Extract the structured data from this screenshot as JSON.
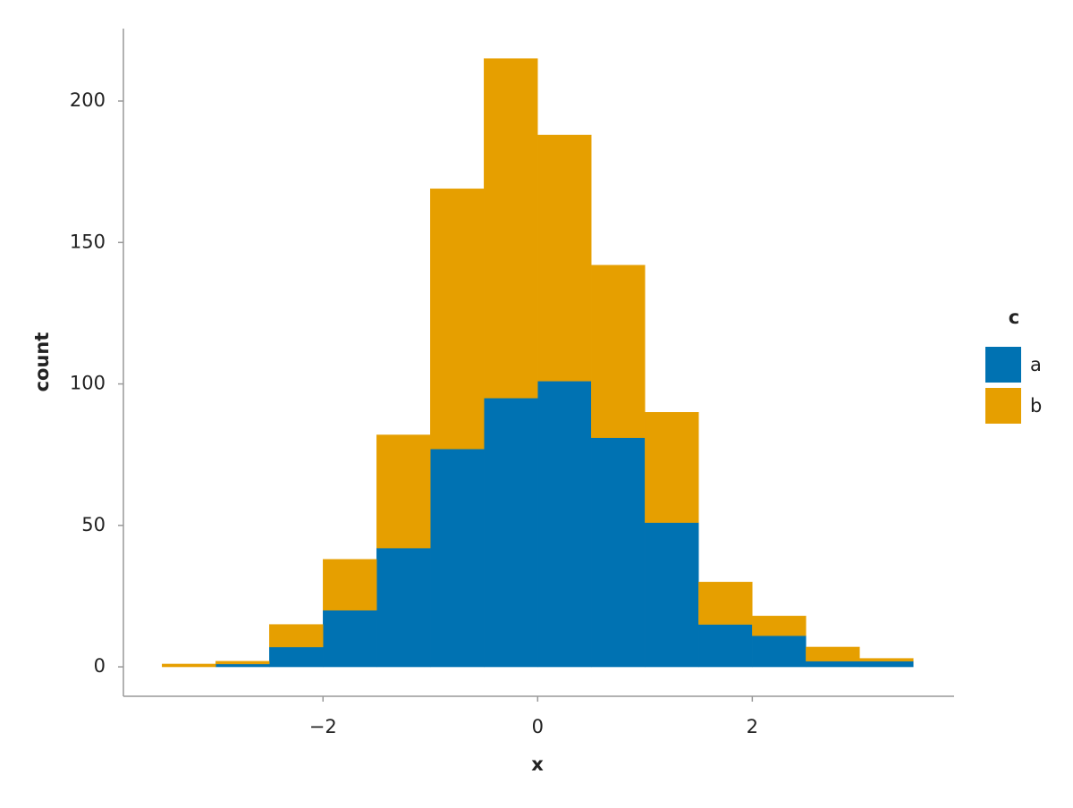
{
  "chart_data": {
    "type": "histogram",
    "stacked": true,
    "bins": [
      -3.5,
      -3,
      -2.5,
      -2,
      -1.5,
      -1,
      -0.5,
      0,
      0.5,
      1,
      1.5,
      2,
      2.5,
      3,
      3.5
    ],
    "series": [
      {
        "name": "a",
        "color": "#0072b2",
        "values": [
          0,
          1,
          7,
          20,
          42,
          77,
          95,
          101,
          81,
          51,
          15,
          11,
          2,
          2
        ]
      },
      {
        "name": "b",
        "color": "#e69f00",
        "values": [
          1,
          1,
          8,
          18,
          40,
          92,
          120,
          87,
          61,
          39,
          15,
          7,
          5,
          1
        ]
      }
    ],
    "xlabel": "x",
    "ylabel": "count",
    "legend_title": "c",
    "legend": "right",
    "xlim": [
      -3.86,
      3.88
    ],
    "xticks": [
      {
        "value": -2,
        "label": "−2"
      },
      0,
      2
    ],
    "ylim": [
      -10.4,
      225.6
    ],
    "yticks": [
      0,
      50,
      100,
      150,
      200
    ],
    "grid": false
  }
}
